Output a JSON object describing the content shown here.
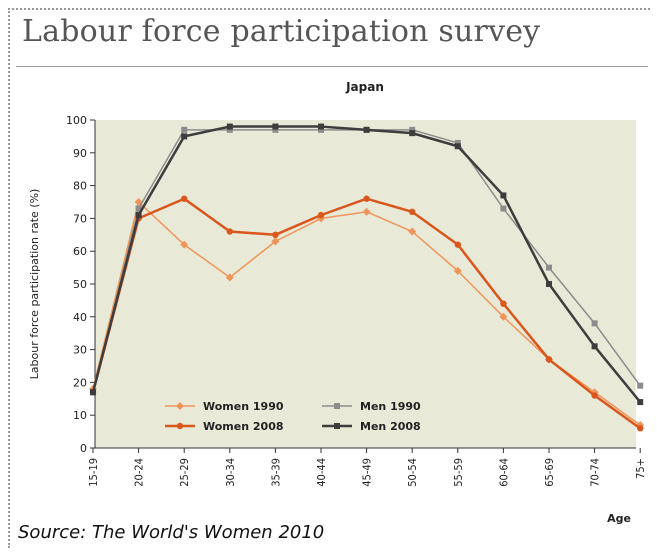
{
  "header": {
    "title": "Labour force participation survey"
  },
  "source": "Source: The World's Women 2010",
  "chart_data": {
    "type": "line",
    "title": "Japan",
    "xlabel": "Age",
    "ylabel": "Labour force participation rate (%)",
    "ylim": [
      0,
      100
    ],
    "yticks": [
      0,
      10,
      20,
      30,
      40,
      50,
      60,
      70,
      80,
      90,
      100
    ],
    "grid": false,
    "legend_position": "bottom-left",
    "plot_background": "#e9e9d8",
    "categories": [
      "15-19",
      "20-24",
      "25-29",
      "30-34",
      "35-39",
      "40-44",
      "45-49",
      "50-54",
      "55-59",
      "60-64",
      "65-69",
      "70-74",
      "75+"
    ],
    "series": [
      {
        "name": "Women 1990",
        "color": "#f0955a",
        "marker": "diamond",
        "width": 1.5,
        "values": [
          18,
          75,
          62,
          52,
          63,
          70,
          72,
          66,
          54,
          40,
          27,
          17,
          7
        ]
      },
      {
        "name": "Women 2008",
        "color": "#d9561c",
        "marker": "circle",
        "width": 2.5,
        "values": [
          17,
          70,
          76,
          66,
          65,
          71,
          76,
          72,
          62,
          44,
          27,
          16,
          6
        ]
      },
      {
        "name": "Men 1990",
        "color": "#8c8c8c",
        "marker": "square",
        "width": 1.5,
        "values": [
          17,
          73,
          97,
          97,
          97,
          97,
          97,
          97,
          93,
          73,
          55,
          38,
          19
        ]
      },
      {
        "name": "Men 2008",
        "color": "#3d3d3d",
        "marker": "square",
        "width": 2.5,
        "values": [
          17,
          71,
          95,
          98,
          98,
          98,
          97,
          96,
          92,
          77,
          50,
          31,
          14
        ]
      }
    ]
  }
}
